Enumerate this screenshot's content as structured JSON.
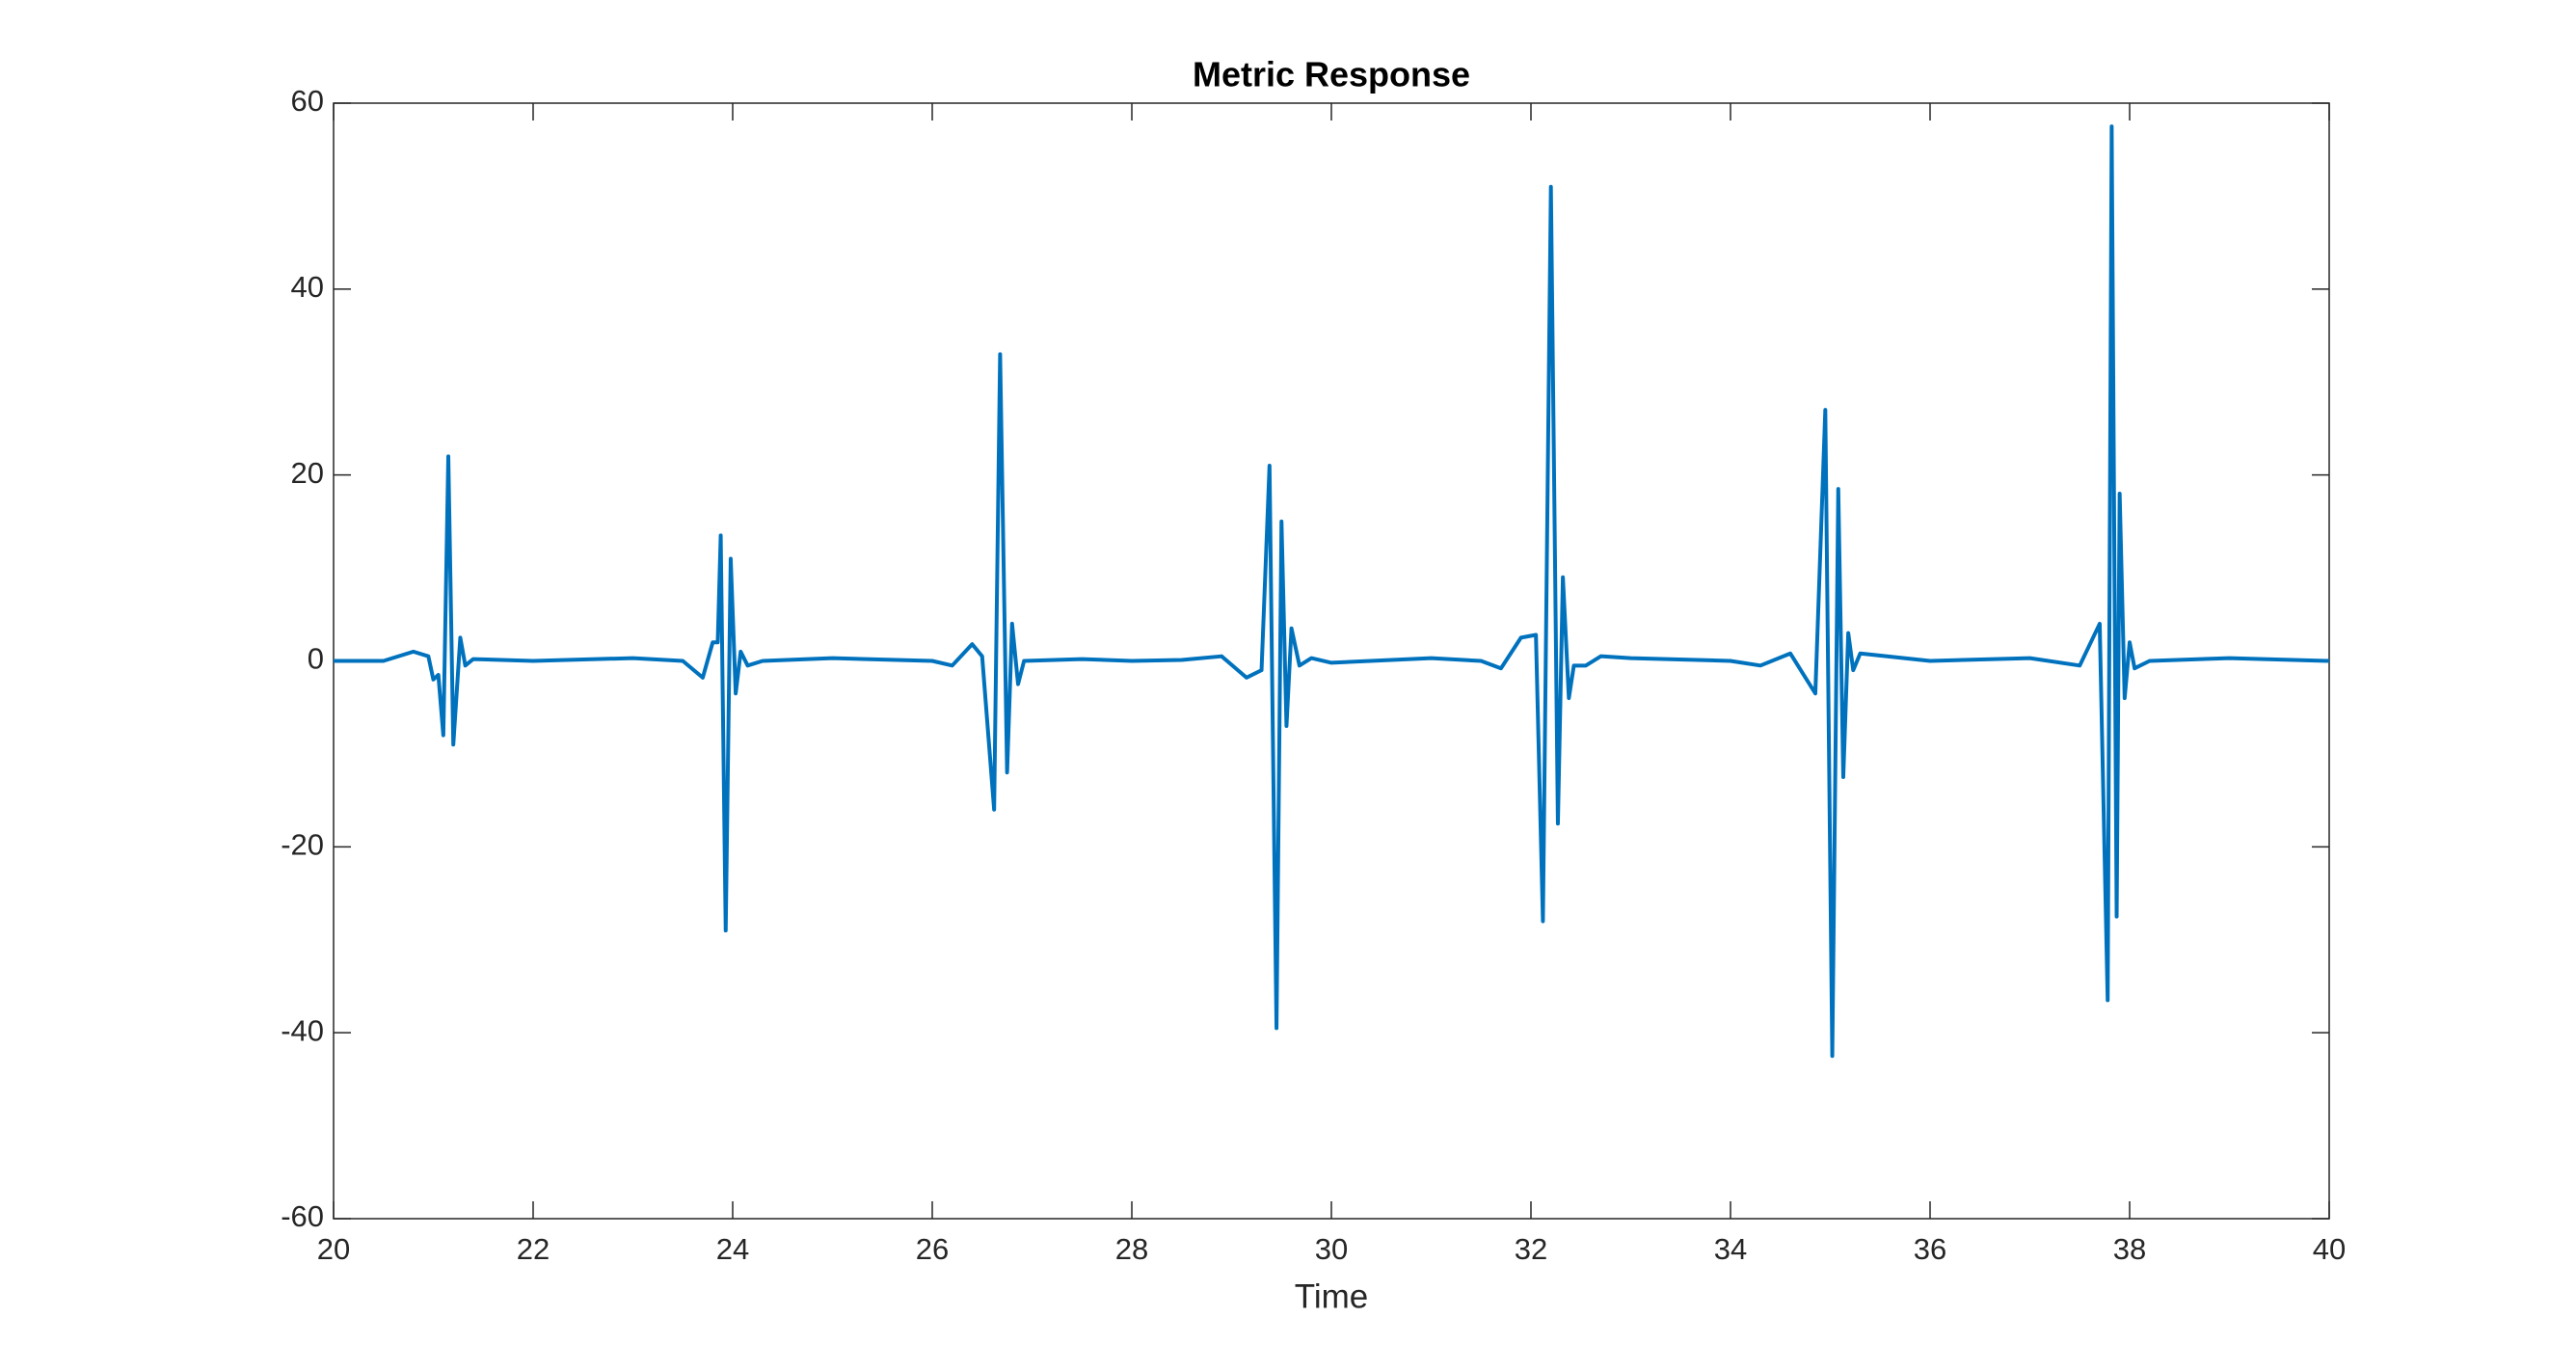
{
  "chart_data": {
    "type": "line",
    "title": "Metric Response",
    "x_label": "Time",
    "x": [
      20,
      20.5,
      20.8,
      20.95,
      21.0,
      21.05,
      21.1,
      21.15,
      21.2,
      21.27,
      21.32,
      21.4,
      22,
      23,
      23.5,
      23.7,
      23.8,
      23.85,
      23.88,
      23.93,
      23.98,
      24.03,
      24.08,
      24.15,
      24.3,
      25,
      26,
      26.2,
      26.4,
      26.5,
      26.62,
      26.68,
      26.75,
      26.8,
      26.86,
      26.92,
      27.5,
      28,
      28.5,
      28.9,
      29.15,
      29.3,
      29.38,
      29.45,
      29.5,
      29.55,
      29.6,
      29.68,
      29.8,
      30,
      31,
      31.5,
      31.7,
      31.9,
      32.05,
      32.12,
      32.2,
      32.27,
      32.32,
      32.38,
      32.43,
      32.55,
      32.7,
      33,
      34,
      34.3,
      34.6,
      34.85,
      34.95,
      35.02,
      35.08,
      35.13,
      35.18,
      35.23,
      35.3,
      36,
      37,
      37.5,
      37.7,
      37.78,
      37.82,
      37.87,
      37.9,
      37.95,
      38,
      38.05,
      38.2,
      39,
      40
    ],
    "series": [
      {
        "color": "#0072bd",
        "values": [
          0,
          0,
          1,
          0.5,
          -2,
          -1.5,
          -8,
          22,
          -9,
          2.5,
          -0.5,
          0.2,
          0,
          0.3,
          0,
          -1.8,
          2,
          2,
          13.5,
          -29,
          11,
          -3.5,
          1,
          -0.5,
          0,
          0.3,
          0,
          -0.5,
          1.8,
          0.5,
          -16,
          33,
          -12,
          4,
          -2.5,
          0,
          0.2,
          0,
          0.1,
          0.5,
          -1.8,
          -1,
          21,
          -39.5,
          15,
          -7,
          3.5,
          -0.5,
          0.3,
          -0.2,
          0.3,
          0,
          -0.8,
          2.5,
          2.8,
          -28,
          51,
          -17.5,
          9,
          -4,
          -0.5,
          -0.5,
          0.5,
          0.3,
          0,
          -0.5,
          0.8,
          -3.5,
          27,
          -42.5,
          18.5,
          -12.5,
          3,
          -1,
          0.8,
          0,
          0.3,
          -0.5,
          4,
          -36.5,
          57.5,
          -27.5,
          18,
          -4,
          2,
          -0.8,
          0,
          0.3,
          0
        ]
      }
    ],
    "xlim": [
      20,
      40
    ],
    "xticks": [
      20,
      22,
      24,
      26,
      28,
      30,
      32,
      34,
      36,
      38,
      40
    ],
    "ylim": [
      -60,
      60
    ],
    "yticks": [
      -60,
      -40,
      -20,
      0,
      20,
      40,
      60
    ],
    "grid": false
  }
}
